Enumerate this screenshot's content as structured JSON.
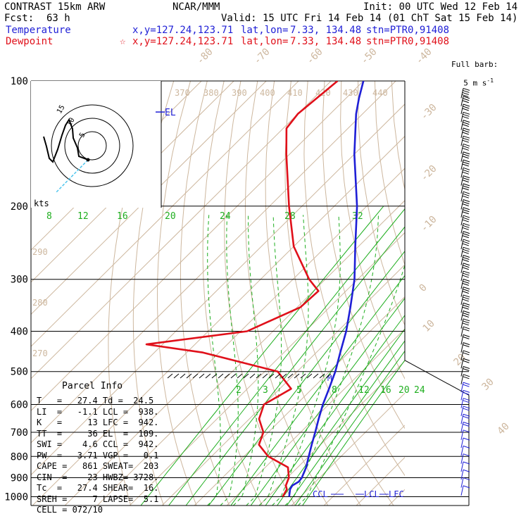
{
  "header": {
    "model": "CONTRAST 15km ARW",
    "center": "NCAR/MMM",
    "init": "Init: 00 UTC Wed 12 Feb 14",
    "fcst_label": "Fcst:",
    "fcst_value": "63 h",
    "valid": "Valid: 15 UTC Fri 14 Feb 14 (01 ChT Sat 15 Feb 14)",
    "temp_label": "Temperature",
    "dew_label": "Dewpoint",
    "temp_xy": "x,y=127.24,123.71",
    "dew_xy": "x,y=127.24,123.71",
    "latlon_label": "lat,lon=",
    "latlon_value": "7.33, 134.48",
    "stn": "stn=PTR0,91408",
    "temp_color": "#1f1fd6",
    "dew_color": "#e0101a"
  },
  "barb_legend": {
    "line1": "Full barb:",
    "line2": "5 m s",
    "sup": "-1"
  },
  "hodograph": {
    "units": "kts",
    "ring_labels": [
      "5",
      "10",
      "15"
    ]
  },
  "parcel": {
    "title": "Parcel Info",
    "rows": [
      "T   =   27.4 Td =  24.5",
      "LI  =   -1.1 LCL =  938.",
      "K   =     13 LFC =  942.",
      "TT  =     36 EL  =  109.",
      "SWI =    4.6 CCL =  942.",
      "PW  =   3.71 VGP =   0.1",
      "CAPE =   861 SWEAT=  203",
      "CIN  =   -23 HWBZ= 3728.",
      "Tc  =   27.4 SHEAR=  16.",
      "SREH =     7 LAPSE=  5.1",
      "CELL = 072/10"
    ]
  },
  "chart_data": {
    "type": "line",
    "title": "",
    "yscale": "log",
    "ylim": [
      1000,
      100
    ],
    "pressure_ticks": [
      100,
      200,
      300,
      400,
      500,
      600,
      700,
      800,
      900,
      1000
    ],
    "isotherm_labels": [
      "-80",
      "-70",
      "-60",
      "-50",
      "-40",
      "-30",
      "-20",
      "-10",
      "0",
      "10",
      "20",
      "30",
      "40"
    ],
    "theta_labels": [
      "370",
      "380",
      "390",
      "400",
      "410",
      "420",
      "430",
      "440",
      "290",
      "280",
      "270"
    ],
    "mixing_ratio_labels_upper": [
      "8",
      "12",
      "16",
      "20",
      "24",
      "28",
      "32"
    ],
    "mixing_ratio_labels_lower": [
      "2",
      "3",
      "5",
      "8",
      "12",
      "16",
      "20",
      "24"
    ],
    "level_labels": [
      "EL",
      "CCL",
      "LCL",
      "LFC",
      "M"
    ],
    "series": [
      {
        "name": "Temperature",
        "color": "#1f1fd6",
        "points": [
          [
            1000,
            26.5
          ],
          [
            960,
            24.5
          ],
          [
            940,
            24.0
          ],
          [
            920,
            24.8
          ],
          [
            900,
            24.5
          ],
          [
            850,
            22.6
          ],
          [
            800,
            20.0
          ],
          [
            750,
            17.3
          ],
          [
            700,
            14.5
          ],
          [
            650,
            11.4
          ],
          [
            600,
            8.2
          ],
          [
            550,
            5.2
          ],
          [
            500,
            1.8
          ],
          [
            450,
            -2.6
          ],
          [
            400,
            -7.4
          ],
          [
            350,
            -13.6
          ],
          [
            300,
            -21.0
          ],
          [
            250,
            -31.0
          ],
          [
            200,
            -43.0
          ],
          [
            150,
            -60.0
          ],
          [
            120,
            -72.0
          ],
          [
            110,
            -76.0
          ],
          [
            100,
            -80.0
          ]
        ]
      },
      {
        "name": "Dewpoint",
        "color": "#e0101a",
        "points": [
          [
            1000,
            24.5
          ],
          [
            960,
            23.5
          ],
          [
            940,
            22.0
          ],
          [
            900,
            20.5
          ],
          [
            850,
            17.0
          ],
          [
            800,
            7.5
          ],
          [
            750,
            1.0
          ],
          [
            700,
            -1.5
          ],
          [
            650,
            -7.0
          ],
          [
            600,
            -10.0
          ],
          [
            550,
            -6.5
          ],
          [
            500,
            -16.0
          ],
          [
            450,
            -45.0
          ],
          [
            430,
            -65.0
          ],
          [
            400,
            -38.0
          ],
          [
            350,
            -29.0
          ],
          [
            320,
            -28.5
          ],
          [
            300,
            -35.0
          ],
          [
            250,
            -50.0
          ],
          [
            200,
            -64.0
          ],
          [
            150,
            -81.0
          ],
          [
            130,
            -89.0
          ],
          [
            120,
            -90.0
          ],
          [
            100,
            -88.0
          ]
        ]
      }
    ]
  }
}
